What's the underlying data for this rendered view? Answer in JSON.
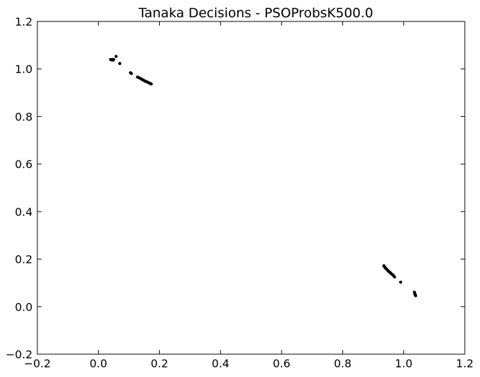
{
  "chart_data": {
    "type": "scatter",
    "title": "Tanaka Decisions - PSOProbsK500.0",
    "xlabel": "",
    "ylabel": "",
    "xlim": [
      -0.2,
      1.2
    ],
    "ylim": [
      -0.2,
      1.2
    ],
    "xticks": [
      -0.2,
      0.0,
      0.2,
      0.4,
      0.6,
      0.8,
      1.0,
      1.2
    ],
    "yticks": [
      -0.2,
      0.0,
      0.2,
      0.4,
      0.6,
      0.8,
      1.0,
      1.2
    ],
    "xtick_labels": [
      "−0.2",
      "0.0",
      "0.2",
      "0.4",
      "0.6",
      "0.8",
      "1.0",
      "1.2"
    ],
    "ytick_labels": [
      "−0.2",
      "0.0",
      "0.2",
      "0.4",
      "0.6",
      "0.8",
      "1.0",
      "1.2"
    ],
    "grid": false,
    "marker_color": "#000000",
    "series": [
      {
        "points": [
          [
            0.04,
            1.04
          ],
          [
            0.043,
            1.038
          ],
          [
            0.046,
            1.039
          ],
          [
            0.048,
            1.037
          ],
          [
            0.05,
            1.04
          ],
          [
            0.058,
            1.053
          ],
          [
            0.07,
            1.023
          ],
          [
            0.105,
            0.984
          ],
          [
            0.108,
            0.981
          ],
          [
            0.128,
            0.966
          ],
          [
            0.133,
            0.963
          ],
          [
            0.138,
            0.96
          ],
          [
            0.142,
            0.957
          ],
          [
            0.146,
            0.954
          ],
          [
            0.15,
            0.951
          ],
          [
            0.154,
            0.948
          ],
          [
            0.158,
            0.946
          ],
          [
            0.162,
            0.944
          ],
          [
            0.166,
            0.941
          ],
          [
            0.17,
            0.939
          ],
          [
            0.173,
            0.937
          ],
          [
            0.935,
            0.172
          ],
          [
            0.937,
            0.168
          ],
          [
            0.939,
            0.164
          ],
          [
            0.942,
            0.16
          ],
          [
            0.945,
            0.156
          ],
          [
            0.948,
            0.152
          ],
          [
            0.951,
            0.148
          ],
          [
            0.955,
            0.144
          ],
          [
            0.958,
            0.14
          ],
          [
            0.962,
            0.136
          ],
          [
            0.966,
            0.131
          ],
          [
            0.97,
            0.125
          ],
          [
            0.99,
            0.103
          ],
          [
            1.035,
            0.061
          ],
          [
            1.036,
            0.056
          ],
          [
            1.037,
            0.052
          ],
          [
            1.038,
            0.049
          ],
          [
            1.039,
            0.046
          ]
        ]
      }
    ]
  }
}
